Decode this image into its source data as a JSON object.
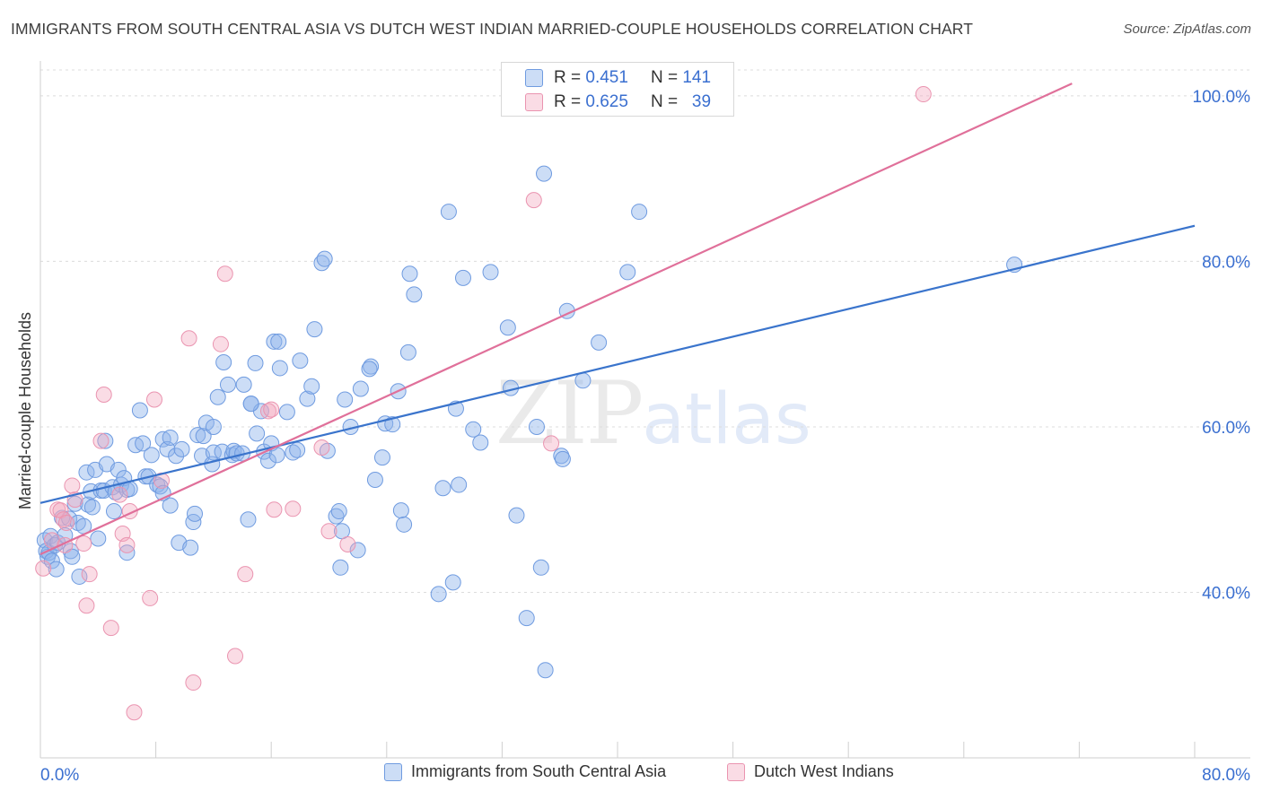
{
  "header": {
    "title": "IMMIGRANTS FROM SOUTH CENTRAL ASIA VS DUTCH WEST INDIAN MARRIED-COUPLE HOUSEHOLDS CORRELATION CHART",
    "source": "Source: ZipAtlas.com"
  },
  "watermark": {
    "zip": "ZIP",
    "atlas": "atlas"
  },
  "stats": {
    "rows": [
      {
        "r_label": "R =",
        "r_value": "0.451",
        "n_label": "N =",
        "n_value": "141",
        "color": "#8fb4ea"
      },
      {
        "r_label": "R =",
        "r_value": "0.625",
        "n_label": "N =",
        "n_value": "39",
        "color": "#f2a7bf"
      }
    ]
  },
  "legend": {
    "items": [
      {
        "label": "Immigrants from South Central Asia",
        "color": "#8fb4ea"
      },
      {
        "label": "Dutch West Indians",
        "color": "#f2a7bf"
      }
    ]
  },
  "colors": {
    "blue_fill": "rgba(143,180,234,0.45)",
    "blue_stroke": "#6f9be0",
    "blue_line": "#3a74cc",
    "pink_fill": "rgba(242,167,191,0.40)",
    "pink_stroke": "#ea94b0",
    "pink_line": "#e0709a",
    "tick_label": "#3a6fd0"
  },
  "chart_data": {
    "type": "scatter",
    "title": "IMMIGRANTS FROM SOUTH CENTRAL ASIA VS DUTCH WEST INDIAN MARRIED-COUPLE HOUSEHOLDS CORRELATION CHART",
    "xlabel": "",
    "ylabel": "Married-couple Households",
    "xlim": [
      0,
      80
    ],
    "ylim": [
      20,
      104
    ],
    "x_tick_labels": [
      "0.0%",
      "80.0%"
    ],
    "y_ticks": [
      40,
      60,
      80,
      100
    ],
    "y_tick_labels": [
      "40.0%",
      "60.0%",
      "80.0%",
      "100.0%"
    ],
    "grid": true,
    "legend_position": "bottom",
    "series": [
      {
        "name": "Immigrants from South Central Asia",
        "r": 0.451,
        "n": 141,
        "trend": {
          "x0": 0,
          "y0": 50.8,
          "x1": 80,
          "y1": 84.3
        },
        "points": [
          [
            0.3,
            46.3
          ],
          [
            0.4,
            45.0
          ],
          [
            0.5,
            44.3
          ],
          [
            0.6,
            44.8
          ],
          [
            0.7,
            46.8
          ],
          [
            0.8,
            43.8
          ],
          [
            1.0,
            45.7
          ],
          [
            1.1,
            42.8
          ],
          [
            1.2,
            46.0
          ],
          [
            1.5,
            49.0
          ],
          [
            1.7,
            46.9
          ],
          [
            2.0,
            48.9
          ],
          [
            2.1,
            45.0
          ],
          [
            2.2,
            44.3
          ],
          [
            2.4,
            50.7
          ],
          [
            2.6,
            48.4
          ],
          [
            2.7,
            41.9
          ],
          [
            3.0,
            48.0
          ],
          [
            3.2,
            54.5
          ],
          [
            3.3,
            50.6
          ],
          [
            3.5,
            52.2
          ],
          [
            3.6,
            50.3
          ],
          [
            3.8,
            54.8
          ],
          [
            4.2,
            52.3
          ],
          [
            4.4,
            52.3
          ],
          [
            4.5,
            58.3
          ],
          [
            4.6,
            55.5
          ],
          [
            5.0,
            52.7
          ],
          [
            5.1,
            49.8
          ],
          [
            5.2,
            52.1
          ],
          [
            5.4,
            54.8
          ],
          [
            5.6,
            53.0
          ],
          [
            5.8,
            53.8
          ],
          [
            6.0,
            52.4
          ],
          [
            6.2,
            52.5
          ],
          [
            6.6,
            57.8
          ],
          [
            6.9,
            62.0
          ],
          [
            7.1,
            58.0
          ],
          [
            7.3,
            54.0
          ],
          [
            7.5,
            54.0
          ],
          [
            7.7,
            56.6
          ],
          [
            8.1,
            53.0
          ],
          [
            8.3,
            52.8
          ],
          [
            8.5,
            52.0
          ],
          [
            8.5,
            58.5
          ],
          [
            8.8,
            57.3
          ],
          [
            9.0,
            58.7
          ],
          [
            9.4,
            56.5
          ],
          [
            9.6,
            46.0
          ],
          [
            9.8,
            57.3
          ],
          [
            10.4,
            45.4
          ],
          [
            10.6,
            48.5
          ],
          [
            10.7,
            49.5
          ],
          [
            10.9,
            59.0
          ],
          [
            11.2,
            56.5
          ],
          [
            11.3,
            58.9
          ],
          [
            11.5,
            60.5
          ],
          [
            11.9,
            55.5
          ],
          [
            12.0,
            60.0
          ],
          [
            12.0,
            56.9
          ],
          [
            12.3,
            63.6
          ],
          [
            12.6,
            57.0
          ],
          [
            12.7,
            67.8
          ],
          [
            13.0,
            65.1
          ],
          [
            13.3,
            56.6
          ],
          [
            13.4,
            57.1
          ],
          [
            13.6,
            56.8
          ],
          [
            14.0,
            56.8
          ],
          [
            14.1,
            65.1
          ],
          [
            14.4,
            48.8
          ],
          [
            14.6,
            62.8
          ],
          [
            14.9,
            67.7
          ],
          [
            15.0,
            59.2
          ],
          [
            15.3,
            61.9
          ],
          [
            15.5,
            57.0
          ],
          [
            15.8,
            55.9
          ],
          [
            16.0,
            58.0
          ],
          [
            16.2,
            70.3
          ],
          [
            16.4,
            56.6
          ],
          [
            16.6,
            67.1
          ],
          [
            17.1,
            61.8
          ],
          [
            17.5,
            56.9
          ],
          [
            17.8,
            57.2
          ],
          [
            18.5,
            63.4
          ],
          [
            18.8,
            64.9
          ],
          [
            19.0,
            71.8
          ],
          [
            19.5,
            79.8
          ],
          [
            19.7,
            80.3
          ],
          [
            19.9,
            57.1
          ],
          [
            20.5,
            49.2
          ],
          [
            20.7,
            49.8
          ],
          [
            20.8,
            43.0
          ],
          [
            20.9,
            47.4
          ],
          [
            21.1,
            63.3
          ],
          [
            21.5,
            60.0
          ],
          [
            22.0,
            45.1
          ],
          [
            22.2,
            64.6
          ],
          [
            22.9,
            67.3
          ],
          [
            23.2,
            53.6
          ],
          [
            23.7,
            56.3
          ],
          [
            23.9,
            60.4
          ],
          [
            24.4,
            60.3
          ],
          [
            24.8,
            64.3
          ],
          [
            25.0,
            49.9
          ],
          [
            25.2,
            48.2
          ],
          [
            25.5,
            69.0
          ],
          [
            25.6,
            78.5
          ],
          [
            25.9,
            76.0
          ],
          [
            27.6,
            39.8
          ],
          [
            27.9,
            52.6
          ],
          [
            28.3,
            86.0
          ],
          [
            28.6,
            41.2
          ],
          [
            28.8,
            62.2
          ],
          [
            29.0,
            53.0
          ],
          [
            29.3,
            78.0
          ],
          [
            30.0,
            59.7
          ],
          [
            30.5,
            58.1
          ],
          [
            31.2,
            78.7
          ],
          [
            32.4,
            72.0
          ],
          [
            32.6,
            64.7
          ],
          [
            33.0,
            49.3
          ],
          [
            33.7,
            36.9
          ],
          [
            34.4,
            60.0
          ],
          [
            34.7,
            43.0
          ],
          [
            34.9,
            90.6
          ],
          [
            35.0,
            30.6
          ],
          [
            36.1,
            56.5
          ],
          [
            36.2,
            56.1
          ],
          [
            36.5,
            74.0
          ],
          [
            37.6,
            65.6
          ],
          [
            38.7,
            70.2
          ],
          [
            40.7,
            78.7
          ],
          [
            41.5,
            86.0
          ],
          [
            67.5,
            79.6
          ],
          [
            4.0,
            46.5
          ],
          [
            6.0,
            44.8
          ],
          [
            9.0,
            50.5
          ],
          [
            14.6,
            62.8
          ],
          [
            16.5,
            70.3
          ],
          [
            18.0,
            68.0
          ],
          [
            22.8,
            67.0
          ]
        ]
      },
      {
        "name": "Dutch West Indians",
        "r": 0.625,
        "n": 39,
        "trend": {
          "x0": 0,
          "y0": 44.6,
          "x1": 71.5,
          "y1": 101.5
        },
        "points": [
          [
            0.2,
            42.9
          ],
          [
            0.8,
            46.3
          ],
          [
            1.2,
            50.0
          ],
          [
            1.4,
            49.9
          ],
          [
            1.6,
            48.8
          ],
          [
            1.7,
            45.7
          ],
          [
            1.8,
            48.4
          ],
          [
            2.2,
            52.9
          ],
          [
            2.4,
            51.2
          ],
          [
            3.0,
            45.9
          ],
          [
            3.2,
            38.4
          ],
          [
            3.4,
            42.2
          ],
          [
            4.2,
            58.3
          ],
          [
            4.4,
            63.9
          ],
          [
            4.9,
            35.7
          ],
          [
            5.5,
            51.8
          ],
          [
            5.7,
            47.1
          ],
          [
            6.0,
            45.7
          ],
          [
            6.2,
            49.8
          ],
          [
            6.5,
            25.5
          ],
          [
            7.6,
            39.3
          ],
          [
            7.9,
            63.3
          ],
          [
            8.4,
            53.5
          ],
          [
            10.3,
            70.7
          ],
          [
            10.6,
            29.1
          ],
          [
            12.5,
            70.0
          ],
          [
            12.8,
            78.5
          ],
          [
            13.5,
            32.3
          ],
          [
            14.2,
            42.2
          ],
          [
            15.8,
            61.9
          ],
          [
            16.0,
            62.1
          ],
          [
            16.2,
            50.0
          ],
          [
            17.5,
            50.1
          ],
          [
            20.0,
            47.4
          ],
          [
            21.3,
            45.8
          ],
          [
            34.2,
            87.4
          ],
          [
            35.4,
            58.0
          ],
          [
            61.2,
            100.2
          ],
          [
            19.5,
            57.5
          ]
        ]
      }
    ]
  }
}
